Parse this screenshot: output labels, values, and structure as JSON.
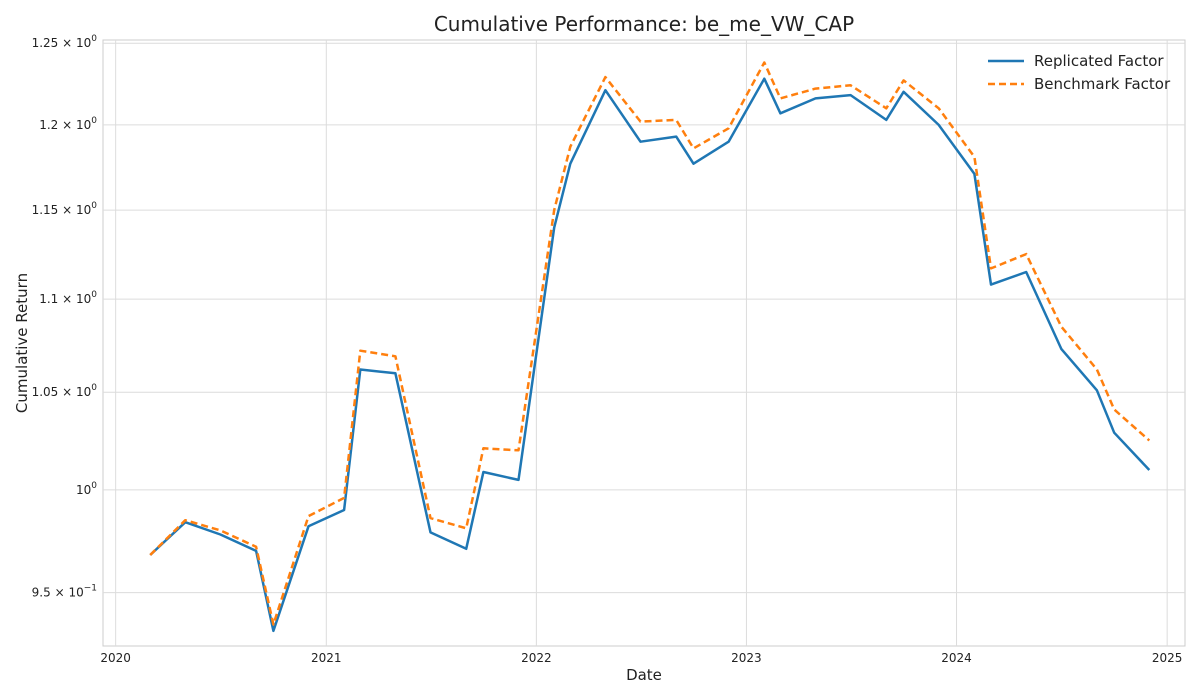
{
  "chart_data": {
    "type": "line",
    "title": "Cumulative Performance: be_me_VW_CAP",
    "xlabel": "Date",
    "ylabel": "Cumulative Return",
    "yscale": "log",
    "grid": true,
    "legend_position": "top-right",
    "xlim": [
      "2019-12-10",
      "2025-02-01"
    ],
    "ylim": [
      0.925,
      1.252
    ],
    "x_ticks": [
      "2020",
      "2021",
      "2022",
      "2023",
      "2024",
      "2025"
    ],
    "y_ticks": [
      {
        "value": 0.95,
        "mantissa": "9.5",
        "exp": "−1"
      },
      {
        "value": 1.0,
        "mantissa": "",
        "exp": "0"
      },
      {
        "value": 1.05,
        "mantissa": "1.05",
        "exp": "0"
      },
      {
        "value": 1.1,
        "mantissa": "1.1",
        "exp": "0"
      },
      {
        "value": 1.15,
        "mantissa": "1.15",
        "exp": "0"
      },
      {
        "value": 1.2,
        "mantissa": "1.2",
        "exp": "0"
      },
      {
        "value": 1.25,
        "mantissa": "1.25",
        "exp": "0"
      }
    ],
    "dates": [
      "2020-03-01",
      "2020-05-01",
      "2020-07-01",
      "2020-09-01",
      "2020-10-01",
      "2020-12-01",
      "2021-02-01",
      "2021-03-01",
      "2021-05-01",
      "2021-07-01",
      "2021-09-01",
      "2021-10-01",
      "2021-12-01",
      "2022-02-01",
      "2022-03-01",
      "2022-05-01",
      "2022-07-01",
      "2022-09-01",
      "2022-10-01",
      "2022-12-01",
      "2023-02-01",
      "2023-03-01",
      "2023-05-01",
      "2023-07-01",
      "2023-09-01",
      "2023-10-01",
      "2023-12-01",
      "2024-02-01",
      "2024-03-01",
      "2024-05-01",
      "2024-07-01",
      "2024-09-01",
      "2024-10-01",
      "2024-12-01"
    ],
    "series": [
      {
        "name": "Replicated Factor",
        "color": "#1f77b4",
        "style": "solid",
        "values": [
          0.968,
          0.984,
          0.978,
          0.97,
          0.932,
          0.982,
          0.99,
          1.062,
          1.06,
          0.979,
          0.971,
          1.009,
          1.005,
          1.14,
          1.177,
          1.221,
          1.19,
          1.193,
          1.177,
          1.19,
          1.228,
          1.207,
          1.216,
          1.218,
          1.203,
          1.22,
          1.2,
          1.171,
          1.108,
          1.115,
          1.073,
          1.051,
          1.029,
          1.01
        ]
      },
      {
        "name": "Benchmark Factor",
        "color": "#ff7f0e",
        "style": "dashed",
        "values": [
          0.968,
          0.985,
          0.98,
          0.972,
          0.935,
          0.987,
          0.996,
          1.072,
          1.069,
          0.986,
          0.981,
          1.021,
          1.02,
          1.15,
          1.187,
          1.229,
          1.202,
          1.203,
          1.186,
          1.198,
          1.238,
          1.216,
          1.222,
          1.224,
          1.21,
          1.227,
          1.21,
          1.181,
          1.117,
          1.125,
          1.085,
          1.062,
          1.041,
          1.025
        ]
      }
    ]
  }
}
